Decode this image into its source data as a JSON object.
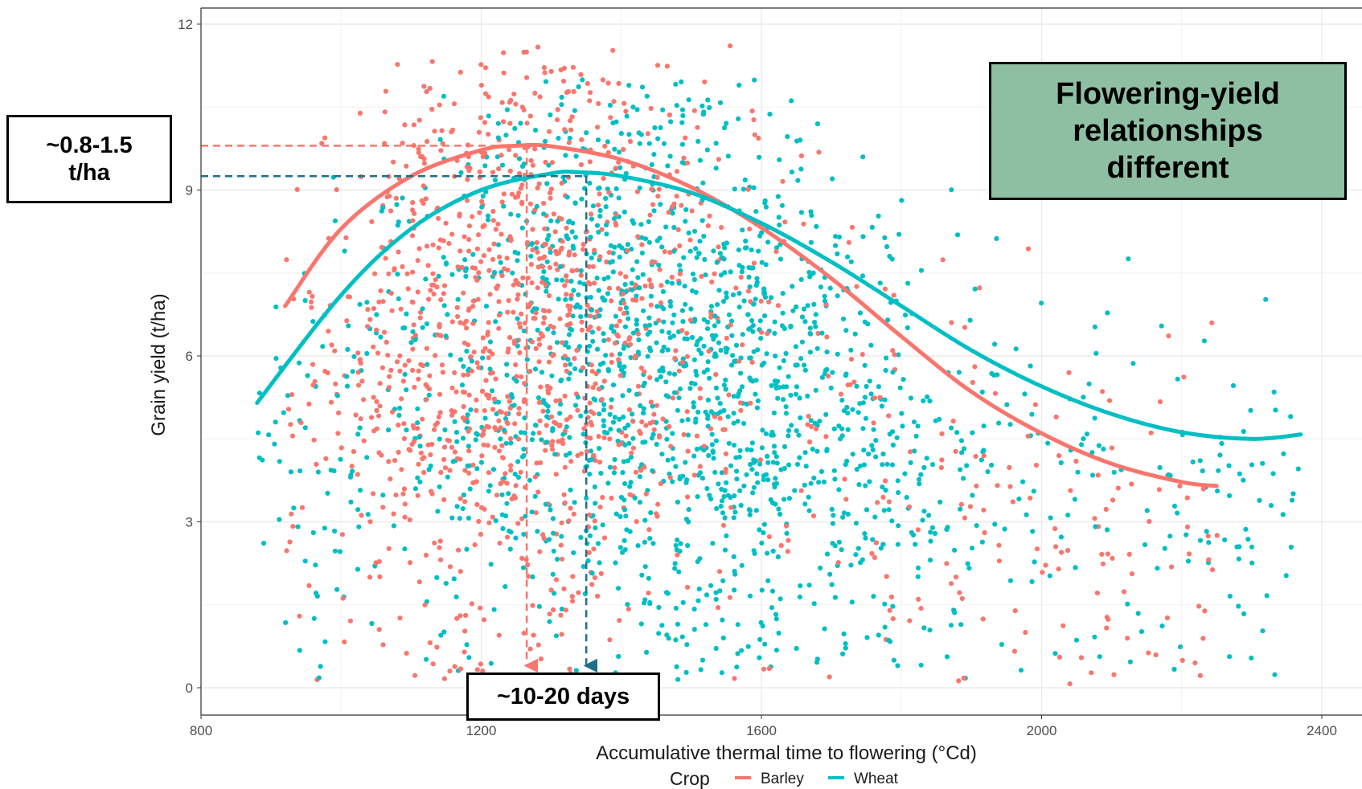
{
  "chart_data": {
    "type": "scatter",
    "xlabel": "Accumulative thermal time to flowering (°Cd)",
    "ylabel": "Grain yield (t/ha)",
    "xlim": [
      800,
      2400
    ],
    "ylim": [
      0,
      12
    ],
    "x_ticks": [
      "800",
      "1200",
      "1600",
      "2000",
      "2400"
    ],
    "y_ticks": [
      "0",
      "3",
      "6",
      "9",
      "12"
    ],
    "grid": true,
    "legend": {
      "title": "Crop",
      "position": "bottom"
    },
    "series": [
      {
        "name": "Barley",
        "color": "#f8766d",
        "points_summary": {
          "x_range": [
            920,
            2250
          ],
          "y_range": [
            0.0,
            11.7
          ],
          "approx_count": 1900,
          "dense_region": {
            "x": [
              1100,
              1450
            ],
            "y": [
              1.5,
              10.5
            ]
          }
        },
        "fitted_curve": [
          [
            920,
            6.9
          ],
          [
            1000,
            8.3
          ],
          [
            1100,
            9.25
          ],
          [
            1200,
            9.72
          ],
          [
            1250,
            9.8
          ],
          [
            1300,
            9.79
          ],
          [
            1400,
            9.55
          ],
          [
            1500,
            9.05
          ],
          [
            1600,
            8.32
          ],
          [
            1700,
            7.4
          ],
          [
            1800,
            6.35
          ],
          [
            1900,
            5.35
          ],
          [
            2000,
            4.6
          ],
          [
            2100,
            4.05
          ],
          [
            2200,
            3.72
          ],
          [
            2250,
            3.65
          ]
        ],
        "peak": {
          "x": 1265,
          "y": 9.8
        }
      },
      {
        "name": "Wheat",
        "color": "#00bfc4",
        "points_summary": {
          "x_range": [
            880,
            2370
          ],
          "y_range": [
            0.1,
            11.0
          ],
          "approx_count": 3000,
          "dense_region": {
            "x": [
              1250,
              1800
            ],
            "y": [
              0.5,
              9.5
            ]
          }
        },
        "fitted_curve": [
          [
            880,
            5.15
          ],
          [
            1000,
            7.1
          ],
          [
            1100,
            8.3
          ],
          [
            1200,
            9.0
          ],
          [
            1300,
            9.3
          ],
          [
            1340,
            9.32
          ],
          [
            1400,
            9.25
          ],
          [
            1500,
            8.95
          ],
          [
            1600,
            8.4
          ],
          [
            1700,
            7.7
          ],
          [
            1800,
            6.9
          ],
          [
            1900,
            6.1
          ],
          [
            2000,
            5.45
          ],
          [
            2100,
            4.95
          ],
          [
            2200,
            4.62
          ],
          [
            2300,
            4.5
          ],
          [
            2370,
            4.58
          ]
        ],
        "peak": {
          "x": 1335,
          "y": 9.3
        }
      }
    ],
    "annotations": [
      {
        "text": "~0.8-1.5\nt/ha",
        "kind": "box"
      },
      {
        "text": "~10-20 days",
        "kind": "box"
      },
      {
        "text": "Flowering-yield\nrelationships\ndifferent",
        "kind": "highlight-box"
      }
    ],
    "reference_lines": [
      {
        "series": "Barley",
        "horizontal_y": 9.8,
        "vertical_x": 1265
      },
      {
        "series": "Wheat",
        "horizontal_y": 9.25,
        "vertical_x": 1350
      }
    ]
  }
}
